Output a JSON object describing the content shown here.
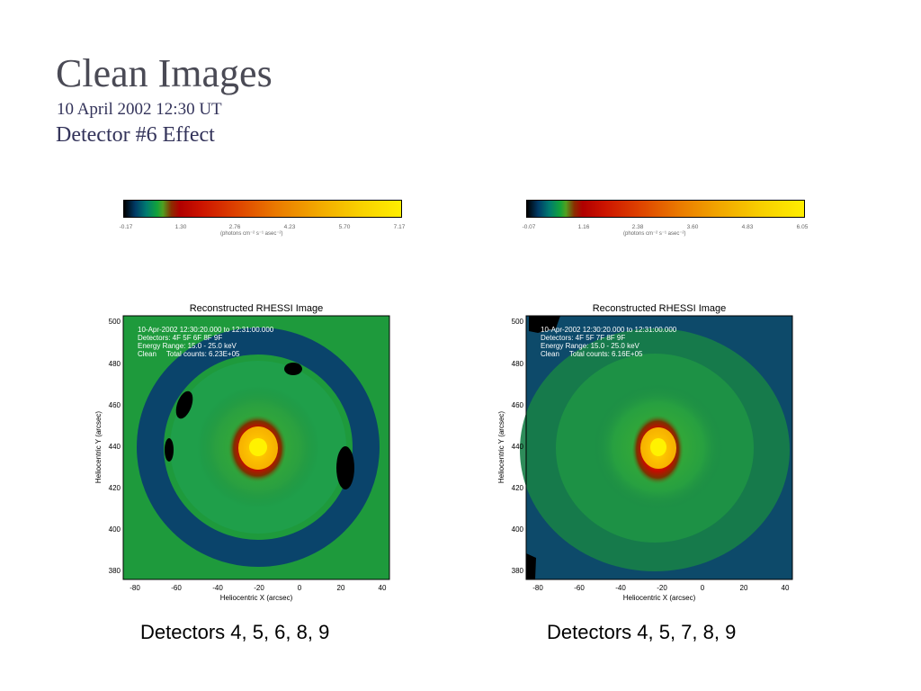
{
  "slide": {
    "title": "Clean Images",
    "date_line": "10 April 2002 12:30 UT",
    "heading": "Detector #6 Effect"
  },
  "colorbars": [
    {
      "ticks": [
        "-0.17",
        "1.30",
        "2.76",
        "4.23",
        "5.70",
        "7.17"
      ],
      "unit": "(photons cm⁻² s⁻¹ asec⁻²)"
    },
    {
      "ticks": [
        "-0.07",
        "1.16",
        "2.38",
        "3.60",
        "4.83",
        "6.05"
      ],
      "unit": "(photons cm⁻² s⁻¹ asec⁻²)"
    }
  ],
  "panels": [
    {
      "plot_title": "Reconstructed RHESSI Image",
      "info_lines": [
        "10-Apr-2002 12:30:20.000 to 12:31:00.000",
        "Detectors: 4F 5F 6F 8F 9F",
        "Energy Range: 15.0 - 25.0 keV",
        "Clean     Total counts: 6.23E+05"
      ],
      "xlabel": "Heliocentric X (arcsec)",
      "ylabel": "Heliocentric Y (arcsec)",
      "xticks": [
        "-80",
        "-60",
        "-40",
        "-20",
        "0",
        "20",
        "40"
      ],
      "yticks": [
        "500",
        "480",
        "460",
        "440",
        "420",
        "400",
        "380"
      ],
      "caption": "Detectors 4, 5, 6, 8, 9"
    },
    {
      "plot_title": "Reconstructed RHESSI Image",
      "info_lines": [
        "10-Apr-2002 12:30:20.000 to 12:31:00.000",
        "Detectors: 4F 5F 7F 8F 9F",
        "Energy Range: 15.0 - 25.0 keV",
        "Clean     Total counts: 6.16E+05"
      ],
      "xlabel": "Heliocentric X (arcsec)",
      "ylabel": "Heliocentric Y (arcsec)",
      "xticks": [
        "-80",
        "-60",
        "-40",
        "-20",
        "0",
        "20",
        "40"
      ],
      "yticks": [
        "500",
        "480",
        "460",
        "440",
        "420",
        "400",
        "380"
      ],
      "caption": "Detectors 4, 5, 7, 8, 9"
    }
  ],
  "colors": {
    "background": "#ffffff",
    "title": "#4a4a55",
    "subtitle": "#33335a",
    "map_green": "#1e9a3c",
    "map_blue": "#0a3f6e",
    "map_core": "#ffe000"
  }
}
